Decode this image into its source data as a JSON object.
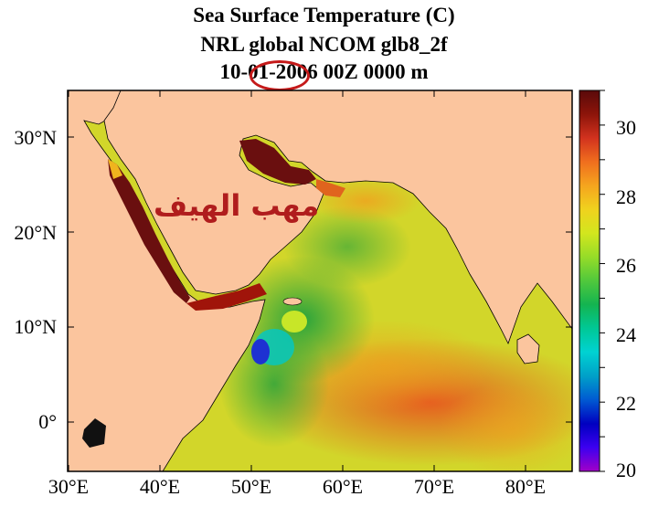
{
  "title": {
    "line1": "Sea Surface Temperature (C)",
    "line2": "NRL global NCOM glb8_2f",
    "line3": "10-01-2006 00Z   0000 m"
  },
  "annotation": {
    "arabic_text": "مهب الهيف",
    "circle_color": "#c51a1a",
    "text_color": "#b01d1d"
  },
  "map": {
    "lat_ticks": [
      "30°N",
      "20°N",
      "10°N",
      "0°"
    ],
    "lon_ticks": [
      "30°E",
      "40°E",
      "50°E",
      "60°E",
      "70°E",
      "80°E"
    ],
    "land_color": "#fbc59e",
    "ocean_base_color": "#d8d430"
  },
  "colorbar": {
    "min": 20,
    "max": 31,
    "tick_labels": [
      "30",
      "28",
      "26",
      "24",
      "22",
      "20"
    ],
    "colors": [
      "#a100c8",
      "#3c00f0",
      "#0000c0",
      "#005ad2",
      "#00a0c8",
      "#00d2d2",
      "#00c896",
      "#14b450",
      "#50c83c",
      "#96dc28",
      "#d2e61e",
      "#f0d21e",
      "#f5a51e",
      "#f06e1e",
      "#d2321e",
      "#8c140a",
      "#5a0a0a"
    ]
  }
}
